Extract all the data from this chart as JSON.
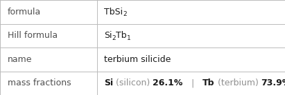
{
  "rows": [
    {
      "label": "formula",
      "value_parts": [
        {
          "text": "TbSi",
          "style": "normal"
        },
        {
          "text": "2",
          "style": "subscript"
        }
      ]
    },
    {
      "label": "Hill formula",
      "value_parts": [
        {
          "text": "Si",
          "style": "normal"
        },
        {
          "text": "2",
          "style": "subscript"
        },
        {
          "text": "Tb",
          "style": "normal"
        },
        {
          "text": "1",
          "style": "subscript"
        }
      ]
    },
    {
      "label": "name",
      "value_parts": [
        {
          "text": "terbium silicide",
          "style": "normal"
        }
      ]
    },
    {
      "label": "mass fractions",
      "value_parts": [
        {
          "text": "Si",
          "style": "bold",
          "color": "#1a1a1a"
        },
        {
          "text": " (silicon) ",
          "style": "gray"
        },
        {
          "text": "26.1%",
          "style": "bold_large"
        },
        {
          "text": "   |   ",
          "style": "gray"
        },
        {
          "text": "Tb",
          "style": "bold",
          "color": "#1a1a1a"
        },
        {
          "text": " (terbium) ",
          "style": "gray"
        },
        {
          "text": "73.9%",
          "style": "bold_large"
        }
      ]
    }
  ],
  "col_split": 0.34,
  "background_color": "#ffffff",
  "border_color": "#bbbbbb",
  "label_color": "#505050",
  "text_color": "#1a1a1a",
  "gray_color": "#909090",
  "font_size": 9.0,
  "sub_font_size": 6.5,
  "large_font_size": 9.0,
  "fig_width": 4.11,
  "fig_height": 1.38,
  "dpi": 100
}
